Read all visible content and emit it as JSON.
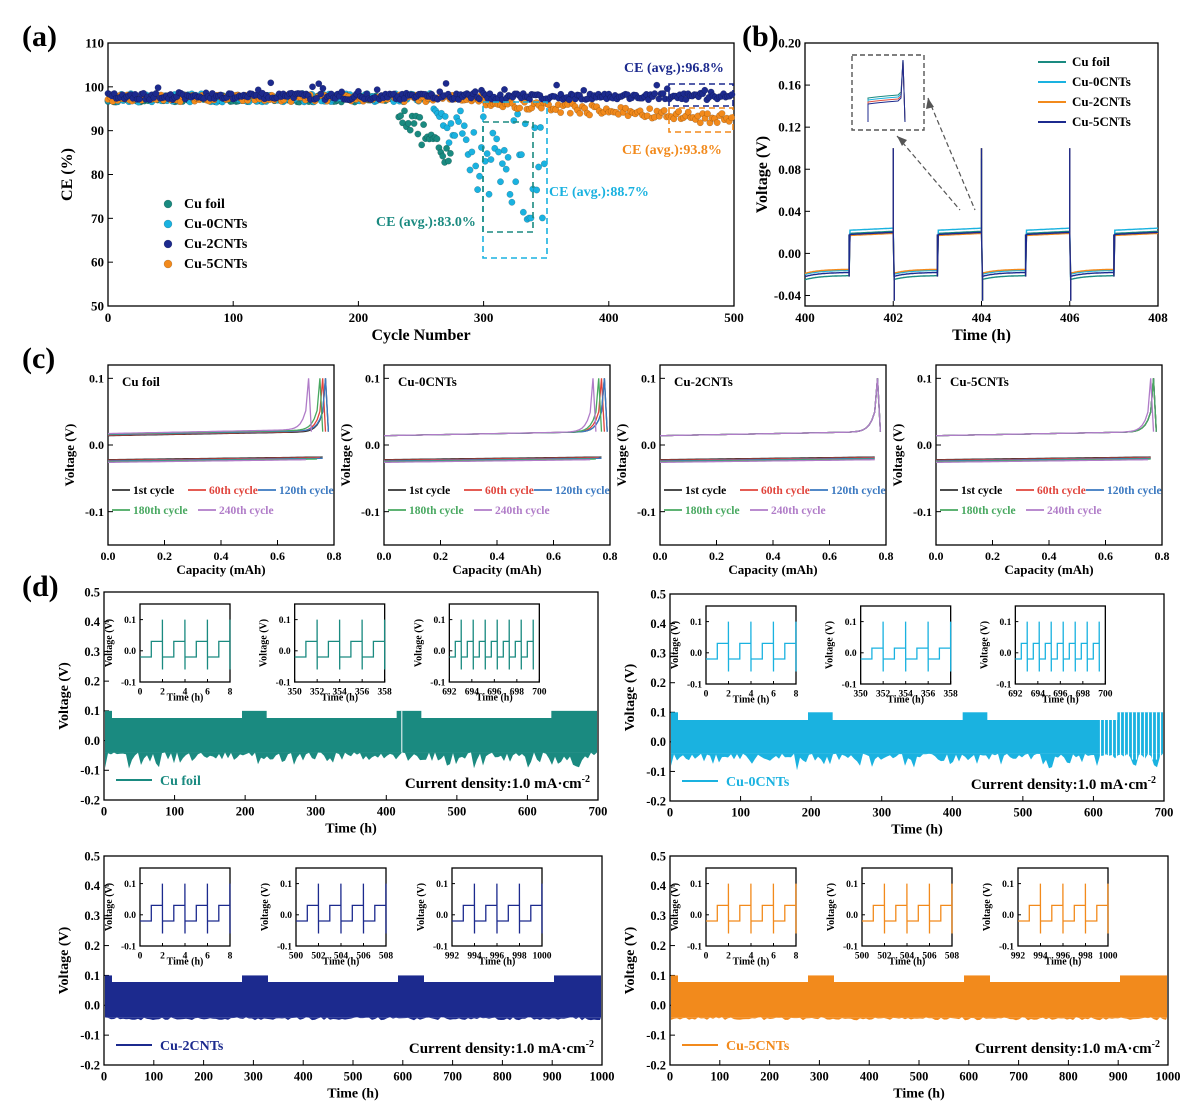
{
  "colors": {
    "cu_foil": "#1a8a80",
    "cu_0cnts": "#1ab2e0",
    "cu_2cnts": "#1c2a8e",
    "cu_5cnts": "#f28a1c",
    "c_1st": "#333333",
    "c_60": "#e0443c",
    "c_120": "#3a78c0",
    "c_180": "#48a860",
    "c_240": "#b07cc8"
  },
  "chart_data": [
    {
      "id": "a",
      "panel_label": "(a)",
      "type": "scatter",
      "xlabel": "Cycle Number",
      "ylabel": "CE (%)",
      "xlim": [
        0,
        500
      ],
      "ylim": [
        50,
        110
      ],
      "xticks": [
        "0",
        "100",
        "200",
        "300",
        "400",
        "500"
      ],
      "yticks": [
        "50",
        "60",
        "70",
        "80",
        "90",
        "100",
        "110"
      ],
      "legend": [
        "Cu foil",
        "Cu-0CNTs",
        "Cu-2CNTs",
        "Cu-5CNTs"
      ],
      "series": [
        {
          "name": "Cu foil",
          "points": [
            [
              0,
              97
            ],
            [
              50,
              97.5
            ],
            [
              100,
              97.8
            ],
            [
              150,
              97.5
            ],
            [
              200,
              97
            ],
            [
              230,
              95
            ],
            [
              240,
              90
            ],
            [
              250,
              85
            ],
            [
              260,
              78
            ],
            [
              270,
              88
            ],
            [
              280,
              92
            ],
            [
              290,
              94
            ],
            [
              300,
              95
            ]
          ]
        },
        {
          "name": "Cu-0CNTs",
          "points": [
            [
              0,
              97
            ],
            [
              100,
              98
            ],
            [
              200,
              97
            ],
            [
              260,
              95
            ],
            [
              280,
              90
            ],
            [
              300,
              85
            ],
            [
              310,
              80
            ],
            [
              320,
              75
            ],
            [
              330,
              70
            ],
            [
              340,
              68
            ],
            [
              345,
              75
            ],
            [
              350,
              90
            ]
          ]
        },
        {
          "name": "Cu-2CNTs",
          "points": [
            [
              0,
              97
            ],
            [
              100,
              98
            ],
            [
              200,
              98.5
            ],
            [
              300,
              98
            ],
            [
              400,
              97.5
            ],
            [
              500,
              97
            ]
          ]
        },
        {
          "name": "Cu-5CNTs",
          "points": [
            [
              0,
              97
            ],
            [
              100,
              98
            ],
            [
              200,
              97.5
            ],
            [
              300,
              96
            ],
            [
              400,
              94
            ],
            [
              450,
              93
            ],
            [
              500,
              92
            ]
          ]
        }
      ],
      "annotations": [
        "CE (avg.):96.8%",
        "CE (avg.):93.8%",
        "CE (avg.):88.7%",
        "CE (avg.):83.0%"
      ]
    },
    {
      "id": "b",
      "panel_label": "(b)",
      "type": "line",
      "xlabel": "Time (h)",
      "ylabel": "Voltage (V)",
      "xlim": [
        400,
        408
      ],
      "ylim": [
        -0.05,
        0.2
      ],
      "xticks": [
        "400",
        "402",
        "404",
        "406",
        "408"
      ],
      "yticks": [
        "-0.04",
        "0.00",
        "0.04",
        "0.08",
        "0.12",
        "0.16",
        "0.20"
      ],
      "legend": [
        "Cu foil",
        "Cu-0CNTs",
        "Cu-2CNTs",
        "Cu-5CNTs"
      ],
      "plating_voltage": -0.018,
      "stripping_voltage": 0.018,
      "period_h": 2,
      "spike_max": 0.1
    },
    {
      "id": "c",
      "panel_label": "(c)",
      "type": "line",
      "xlabel": "Capacity (mAh)",
      "ylabel": "Voltage (V)",
      "xlim": [
        0,
        0.8
      ],
      "ylim": [
        -0.15,
        0.12
      ],
      "xticks": [
        "0.0",
        "0.2",
        "0.4",
        "0.6",
        "0.8"
      ],
      "yticks": [
        "-0.1",
        "0.0",
        "0.1"
      ],
      "legend": [
        "1st cycle",
        "60th cycle",
        "120th cycle",
        "180th cycle",
        "240th cycle"
      ],
      "panels": [
        {
          "title": "Cu foil",
          "end_caps": [
            0.77,
            0.76,
            0.77,
            0.75,
            0.71
          ]
        },
        {
          "title": "Cu-0CNTs",
          "end_caps": [
            0.78,
            0.77,
            0.78,
            0.76,
            0.74
          ]
        },
        {
          "title": "Cu-2CNTs",
          "end_caps": [
            0.77,
            0.77,
            0.77,
            0.77,
            0.77
          ]
        },
        {
          "title": "Cu-5CNTs",
          "end_caps": [
            0.77,
            0.77,
            0.77,
            0.77,
            0.76
          ]
        }
      ]
    },
    {
      "id": "d",
      "panel_label": "(d)",
      "type": "line",
      "xlabel": "Time (h)",
      "ylabel": "Voltage (V)",
      "ylim": [
        -0.2,
        0.5
      ],
      "yticks": [
        "-0.2",
        "-0.1",
        "0.0",
        "0.1",
        "0.2",
        "0.3",
        "0.4",
        "0.5"
      ],
      "annotation": "Current density:1.0 mA·cm",
      "annotation_sup": "-2",
      "inset_ylabel": "Voltage (V)",
      "inset_xlabel": "Time (h)",
      "inset_yticks": [
        "-0.1",
        "0.0",
        "0.1"
      ],
      "panels": [
        {
          "name": "Cu foil",
          "xlim": [
            0,
            700
          ],
          "xticks": [
            "0",
            "100",
            "200",
            "300",
            "400",
            "500",
            "600",
            "700"
          ],
          "insets": [
            [
              "0",
              "2",
              "4",
              "6",
              "8"
            ],
            [
              "350",
              "352",
              "354",
              "356",
              "358"
            ],
            [
              "692",
              "694",
              "696",
              "698",
              "700"
            ]
          ]
        },
        {
          "name": "Cu-0CNTs",
          "xlim": [
            0,
            700
          ],
          "xticks": [
            "0",
            "100",
            "200",
            "300",
            "400",
            "500",
            "600",
            "700"
          ],
          "insets": [
            [
              "0",
              "2",
              "4",
              "6",
              "8"
            ],
            [
              "350",
              "352",
              "354",
              "356",
              "358"
            ],
            [
              "692",
              "694",
              "696",
              "698",
              "700"
            ]
          ]
        },
        {
          "name": "Cu-2CNTs",
          "xlim": [
            0,
            1000
          ],
          "xticks": [
            "0",
            "100",
            "200",
            "300",
            "400",
            "500",
            "600",
            "700",
            "800",
            "900",
            "1000"
          ],
          "insets": [
            [
              "0",
              "2",
              "4",
              "6",
              "8"
            ],
            [
              "500",
              "502",
              "504",
              "506",
              "508"
            ],
            [
              "992",
              "994",
              "996",
              "998",
              "1000"
            ]
          ]
        },
        {
          "name": "Cu-5CNTs",
          "xlim": [
            0,
            1000
          ],
          "xticks": [
            "0",
            "100",
            "200",
            "300",
            "400",
            "500",
            "600",
            "700",
            "800",
            "900",
            "1000"
          ],
          "insets": [
            [
              "0",
              "2",
              "4",
              "6",
              "8"
            ],
            [
              "500",
              "502",
              "504",
              "506",
              "508"
            ],
            [
              "992",
              "994",
              "996",
              "998",
              "1000"
            ]
          ]
        }
      ]
    }
  ]
}
